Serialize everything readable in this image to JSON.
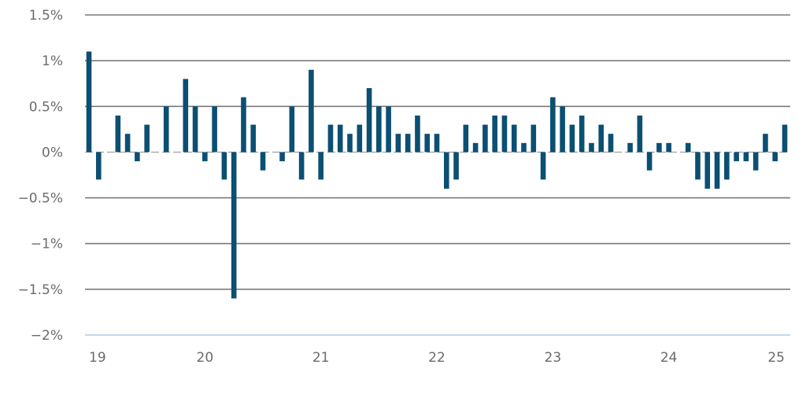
{
  "chart_data": {
    "type": "bar",
    "title": "",
    "xlabel": "",
    "ylabel": "",
    "ylim": [
      -2,
      1.5
    ],
    "y_ticks": [
      1.5,
      1,
      0.5,
      0,
      -0.5,
      -1,
      -1.5,
      -2
    ],
    "y_tick_labels": [
      "1.5%",
      "1%",
      "0.5%",
      "0%",
      "−0.5%",
      "−1%",
      "−1.5%",
      "−2%"
    ],
    "x_ticks": [
      {
        "position": "2019-01",
        "label": "19"
      },
      {
        "position": "2020-01",
        "label": "20"
      },
      {
        "position": "2021-01",
        "label": "21"
      },
      {
        "position": "2022-01",
        "label": "22"
      },
      {
        "position": "2023-01",
        "label": "23"
      },
      {
        "position": "2024-01",
        "label": "24"
      },
      {
        "position": "2025-01",
        "label": "25"
      }
    ],
    "grid": true,
    "colors": {
      "bar": "#0b4f73",
      "grid": "#7a7a7a",
      "text": "#6b6b6b",
      "baseline": "#b9d3e6"
    },
    "series": [
      {
        "x": [
          "2019-01",
          "2019-02",
          "2019-03",
          "2019-04",
          "2019-05",
          "2019-06",
          "2019-07",
          "2019-08",
          "2019-09",
          "2019-10",
          "2019-11",
          "2019-12",
          "2020-01",
          "2020-02",
          "2020-03",
          "2020-04",
          "2020-05",
          "2020-06",
          "2020-07",
          "2020-08",
          "2020-09",
          "2020-10",
          "2020-11",
          "2020-12",
          "2021-01",
          "2021-02",
          "2021-03",
          "2021-04",
          "2021-05",
          "2021-06",
          "2021-07",
          "2021-08",
          "2021-09",
          "2021-10",
          "2021-11",
          "2021-12",
          "2022-01",
          "2022-02",
          "2022-03",
          "2022-04",
          "2022-05",
          "2022-06",
          "2022-07",
          "2022-08",
          "2022-09",
          "2022-10",
          "2022-11",
          "2022-12",
          "2023-01",
          "2023-02",
          "2023-03",
          "2023-04",
          "2023-05",
          "2023-06",
          "2023-07",
          "2023-08",
          "2023-09",
          "2023-10",
          "2023-11",
          "2023-12",
          "2024-01",
          "2024-02",
          "2024-03",
          "2024-04",
          "2024-05",
          "2024-06",
          "2024-07",
          "2024-08",
          "2024-09",
          "2024-10",
          "2024-11",
          "2024-12",
          "2025-01"
        ],
        "values": [
          1.1,
          -0.3,
          0,
          0.4,
          0.2,
          -0.1,
          0.3,
          0,
          0.5,
          0,
          0.8,
          0.5,
          -0.1,
          0.5,
          -0.3,
          -1.6,
          0.6,
          0.3,
          -0.2,
          0,
          -0.1,
          0.5,
          -0.3,
          0.9,
          -0.3,
          0.3,
          0.3,
          0.2,
          0.3,
          0.7,
          0.5,
          0.5,
          0.2,
          0.2,
          0.4,
          0.2,
          0.2,
          -0.4,
          -0.3,
          0.3,
          0.1,
          0.3,
          0.4,
          0.4,
          0.3,
          0.1,
          0.3,
          -0.3,
          0.6,
          0.5,
          0.3,
          0.4,
          0.1,
          0.3,
          0.2,
          0,
          0.1,
          0.4,
          -0.2,
          0.1,
          0.1,
          0,
          0.1,
          -0.3,
          -0.4,
          -0.4,
          -0.3,
          -0.1,
          -0.1,
          -0.2,
          0.2,
          -0.1,
          0.3
        ]
      }
    ]
  }
}
